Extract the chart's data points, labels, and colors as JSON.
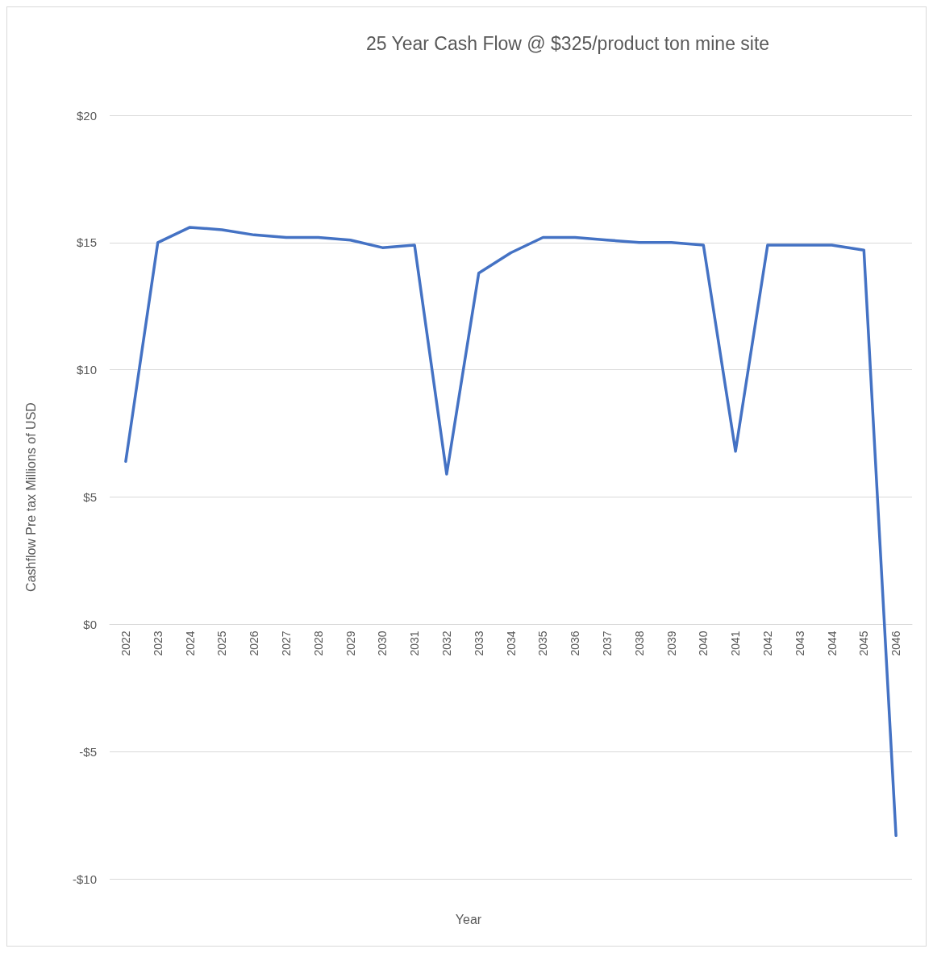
{
  "chart_data": {
    "type": "line",
    "title": "25 Year Cash Flow @ $325/product ton mine site",
    "xlabel": "Year",
    "ylabel": "Cashflow Pre tax Millions of USD",
    "categories": [
      "2022",
      "2023",
      "2024",
      "2025",
      "2026",
      "2027",
      "2028",
      "2029",
      "2030",
      "2031",
      "2032",
      "2033",
      "2034",
      "2035",
      "2036",
      "2037",
      "2038",
      "2039",
      "2040",
      "2041",
      "2042",
      "2043",
      "2044",
      "2045",
      "2046"
    ],
    "series": [
      {
        "color": "#4472c4",
        "values": [
          6.4,
          15.0,
          15.6,
          15.5,
          15.3,
          15.2,
          15.2,
          15.1,
          14.8,
          14.9,
          5.9,
          13.8,
          14.6,
          15.2,
          15.2,
          15.1,
          15.0,
          15.0,
          14.9,
          6.8,
          14.9,
          14.9,
          14.9,
          14.7,
          -8.3
        ]
      }
    ],
    "ylim": [
      -10,
      20
    ],
    "yticks": [
      {
        "value": -10,
        "label": "-$10"
      },
      {
        "value": -5,
        "label": "-$5"
      },
      {
        "value": 0,
        "label": "$0"
      },
      {
        "value": 5,
        "label": "$5"
      },
      {
        "value": 10,
        "label": "$10"
      },
      {
        "value": 15,
        "label": "$15"
      },
      {
        "value": 20,
        "label": "$20"
      }
    ],
    "grid": "y",
    "marker": "none",
    "line_style": "solid"
  }
}
